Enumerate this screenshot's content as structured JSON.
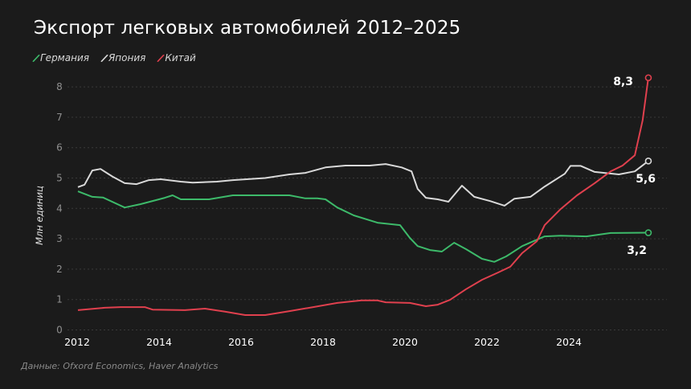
{
  "chart_data": {
    "type": "line",
    "title": "Экспорт легковых автомобилей 2012–2025",
    "ylabel": "Млн единиц",
    "xlabel": "",
    "ylim": [
      0,
      8
    ],
    "xlim": [
      2012,
      2026
    ],
    "yticks": [
      "0",
      "1",
      "2",
      "3",
      "4",
      "5",
      "6",
      "7",
      "8"
    ],
    "xticks": [
      "2012",
      "2014",
      "2016",
      "2018",
      "2020",
      "2022",
      "2024"
    ],
    "grid": true,
    "legend_position": "top-left",
    "source": "Данные: Ofxord Economics, Haver Analytics",
    "series": [
      {
        "name": "Германия",
        "color": "#3dba6a",
        "end_label": "3,2",
        "points": [
          [
            2012.02,
            4.56
          ],
          [
            2012.37,
            4.38
          ],
          [
            2012.63,
            4.36
          ],
          [
            2013.16,
            4.03
          ],
          [
            2013.55,
            4.14
          ],
          [
            2014.14,
            4.35
          ],
          [
            2014.33,
            4.43
          ],
          [
            2014.53,
            4.3
          ],
          [
            2015.22,
            4.3
          ],
          [
            2015.8,
            4.43
          ],
          [
            2016.59,
            4.43
          ],
          [
            2017.18,
            4.43
          ],
          [
            2017.57,
            4.33
          ],
          [
            2017.86,
            4.33
          ],
          [
            2018.06,
            4.3
          ],
          [
            2018.35,
            4.03
          ],
          [
            2018.75,
            3.77
          ],
          [
            2019.33,
            3.53
          ],
          [
            2019.88,
            3.45
          ],
          [
            2020.12,
            3.03
          ],
          [
            2020.31,
            2.76
          ],
          [
            2020.61,
            2.63
          ],
          [
            2020.9,
            2.58
          ],
          [
            2021.2,
            2.87
          ],
          [
            2021.49,
            2.66
          ],
          [
            2021.88,
            2.34
          ],
          [
            2022.18,
            2.24
          ],
          [
            2022.47,
            2.42
          ],
          [
            2022.86,
            2.76
          ],
          [
            2023.41,
            3.08
          ],
          [
            2023.8,
            3.1
          ],
          [
            2024.43,
            3.08
          ],
          [
            2025.02,
            3.19
          ],
          [
            2025.94,
            3.2
          ]
        ]
      },
      {
        "name": "Япония",
        "color": "#d9d9d9",
        "end_label": "5,6",
        "points": [
          [
            2012.02,
            4.7
          ],
          [
            2012.18,
            4.78
          ],
          [
            2012.37,
            5.25
          ],
          [
            2012.57,
            5.3
          ],
          [
            2012.86,
            5.05
          ],
          [
            2013.16,
            4.83
          ],
          [
            2013.45,
            4.8
          ],
          [
            2013.75,
            4.93
          ],
          [
            2014.04,
            4.96
          ],
          [
            2014.53,
            4.88
          ],
          [
            2014.82,
            4.85
          ],
          [
            2015.41,
            4.88
          ],
          [
            2015.8,
            4.93
          ],
          [
            2016.59,
            5.0
          ],
          [
            2017.18,
            5.12
          ],
          [
            2017.57,
            5.17
          ],
          [
            2018.06,
            5.35
          ],
          [
            2018.55,
            5.41
          ],
          [
            2019.14,
            5.41
          ],
          [
            2019.53,
            5.46
          ],
          [
            2019.92,
            5.35
          ],
          [
            2020.16,
            5.22
          ],
          [
            2020.31,
            4.64
          ],
          [
            2020.51,
            4.35
          ],
          [
            2020.8,
            4.3
          ],
          [
            2021.06,
            4.22
          ],
          [
            2021.39,
            4.75
          ],
          [
            2021.69,
            4.38
          ],
          [
            2022.08,
            4.24
          ],
          [
            2022.43,
            4.09
          ],
          [
            2022.67,
            4.32
          ],
          [
            2023.06,
            4.38
          ],
          [
            2023.41,
            4.72
          ],
          [
            2023.9,
            5.14
          ],
          [
            2024.04,
            5.4
          ],
          [
            2024.29,
            5.4
          ],
          [
            2024.63,
            5.2
          ],
          [
            2025.22,
            5.12
          ],
          [
            2025.61,
            5.22
          ],
          [
            2025.94,
            5.56
          ]
        ]
      },
      {
        "name": "Китай",
        "color": "#e0404e",
        "end_label": "8,3",
        "points": [
          [
            2012.02,
            0.65
          ],
          [
            2012.67,
            0.73
          ],
          [
            2013.06,
            0.75
          ],
          [
            2013.65,
            0.75
          ],
          [
            2013.84,
            0.67
          ],
          [
            2014.63,
            0.65
          ],
          [
            2015.12,
            0.7
          ],
          [
            2015.61,
            0.6
          ],
          [
            2016.1,
            0.49
          ],
          [
            2016.59,
            0.49
          ],
          [
            2017.18,
            0.62
          ],
          [
            2017.76,
            0.75
          ],
          [
            2018.35,
            0.89
          ],
          [
            2018.94,
            0.97
          ],
          [
            2019.33,
            0.97
          ],
          [
            2019.53,
            0.91
          ],
          [
            2020.12,
            0.89
          ],
          [
            2020.51,
            0.78
          ],
          [
            2020.8,
            0.83
          ],
          [
            2021.1,
            0.99
          ],
          [
            2021.49,
            1.34
          ],
          [
            2021.88,
            1.65
          ],
          [
            2022.27,
            1.89
          ],
          [
            2022.57,
            2.08
          ],
          [
            2022.86,
            2.53
          ],
          [
            2023.22,
            2.92
          ],
          [
            2023.41,
            3.45
          ],
          [
            2023.8,
            3.98
          ],
          [
            2024.2,
            4.43
          ],
          [
            2024.63,
            4.83
          ],
          [
            2025.02,
            5.22
          ],
          [
            2025.31,
            5.41
          ],
          [
            2025.61,
            5.75
          ],
          [
            2025.8,
            6.9
          ],
          [
            2025.94,
            8.3
          ]
        ]
      }
    ]
  }
}
